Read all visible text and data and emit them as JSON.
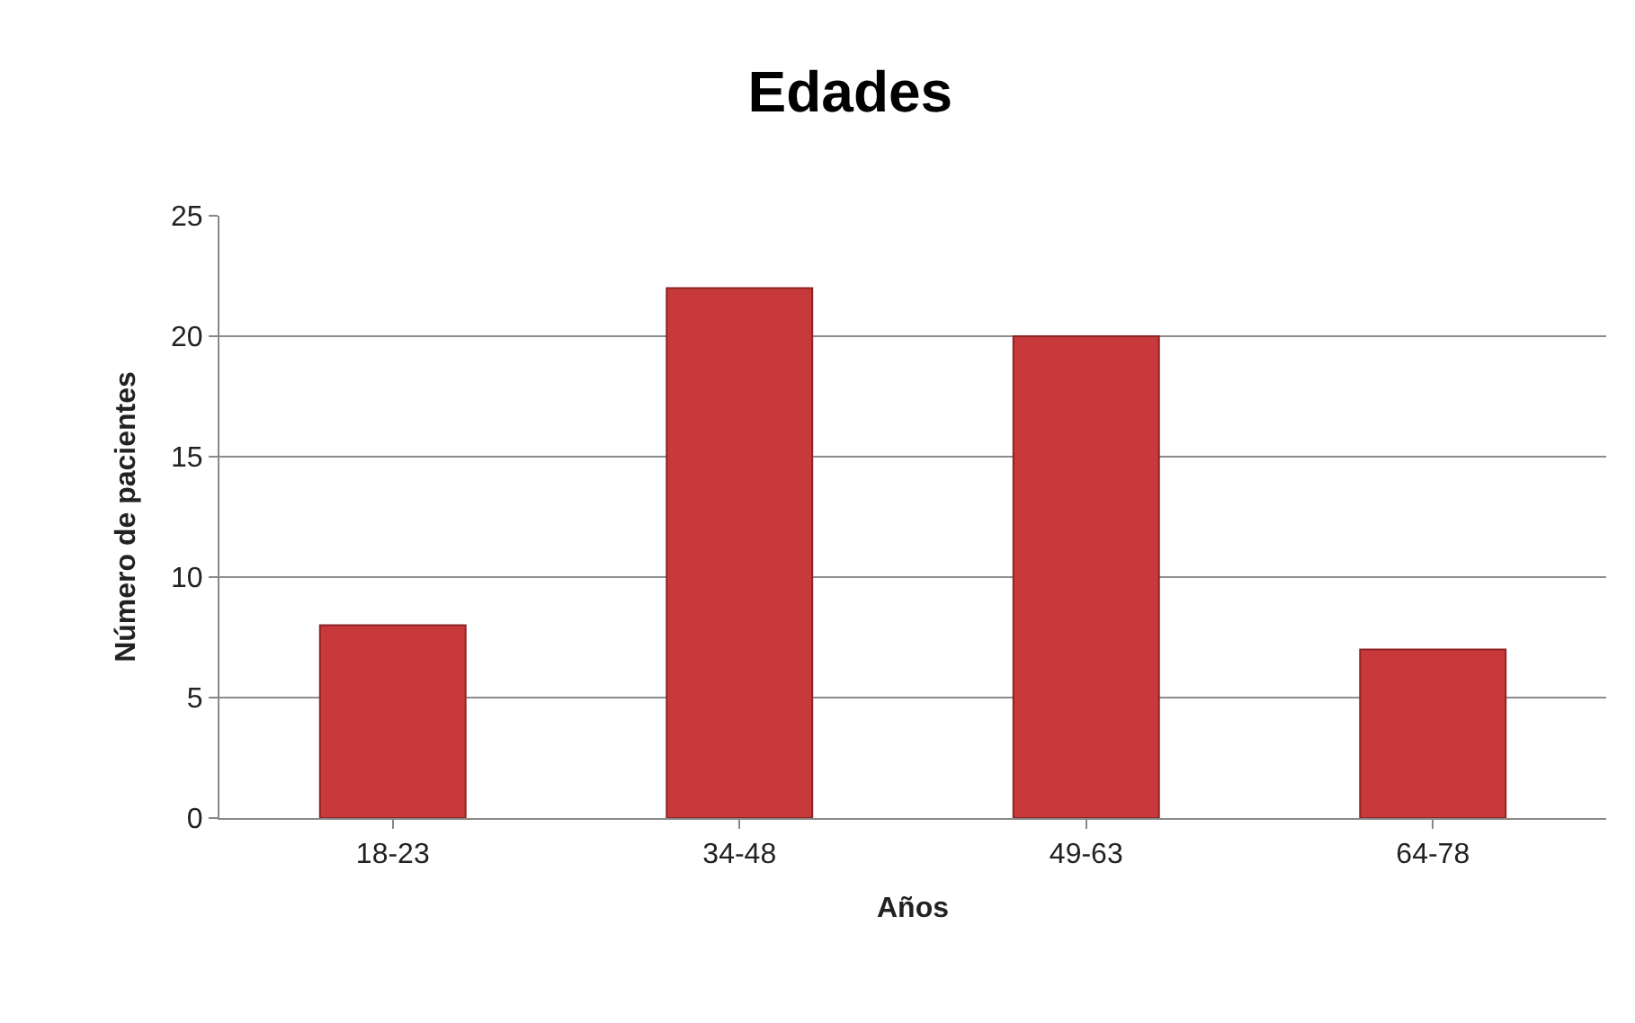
{
  "chart_data": {
    "type": "bar",
    "title": "Edades",
    "xlabel": "Años",
    "ylabel": "Número de pacientes",
    "categories": [
      "18-23",
      "34-48",
      "49-63",
      "64-78"
    ],
    "values": [
      8,
      22,
      20,
      7
    ],
    "color": "#c8393b",
    "ylim": [
      0,
      25
    ],
    "yticks": [
      0,
      5,
      10,
      15,
      20,
      25
    ],
    "grid": "y",
    "legend": false
  }
}
